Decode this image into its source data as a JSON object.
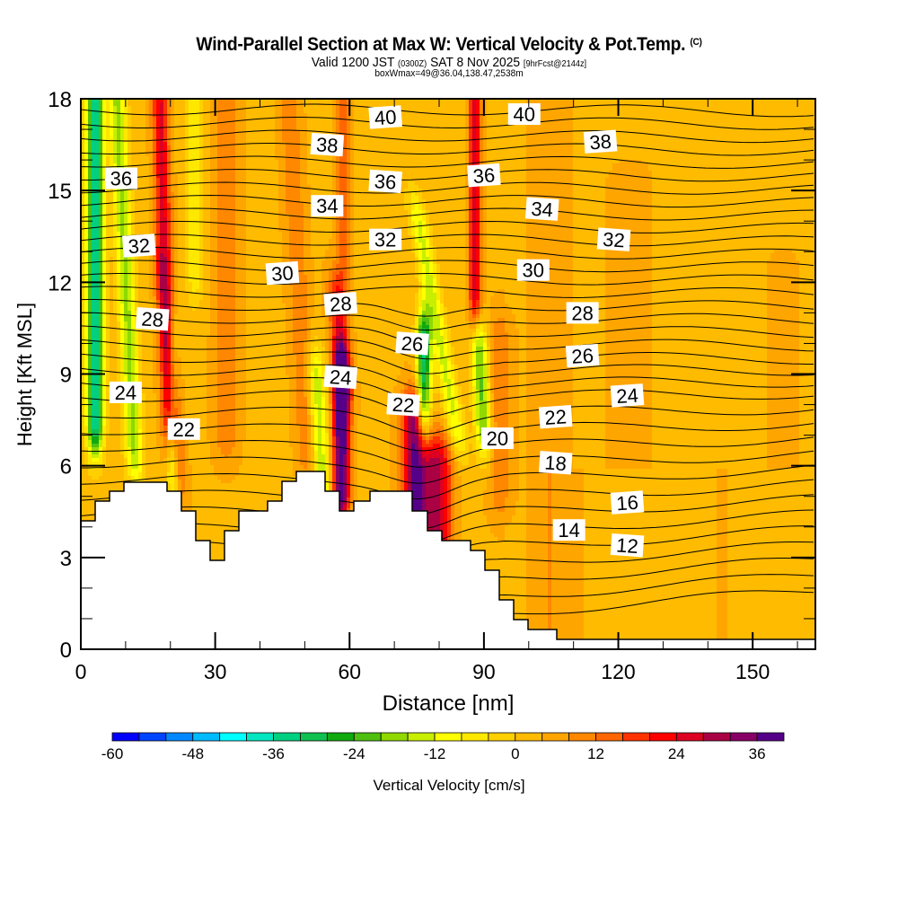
{
  "header": {
    "title": "Wind-Parallel Section at Max W: Vertical Velocity & Pot.Temp.",
    "copyright": "(C)",
    "valid_prefix": "Valid 1200 JST",
    "valid_utc": "(0300Z)",
    "valid_date": "SAT 8 Nov 2025",
    "forecast": "[9hrFcst@2144z]",
    "boxwmax": "boxWmax=49@36.04,138.47,2538m"
  },
  "chart_data": {
    "type": "heatmap",
    "title": "Wind-Parallel Section at Max W: Vertical Velocity & Pot.Temp.",
    "xlabel": "Distance [nm]",
    "ylabel": "Height [Kft MSL]",
    "xlim": [
      0,
      164
    ],
    "ylim": [
      0,
      18
    ],
    "x_ticks": [
      "0",
      "30",
      "60",
      "90",
      "120",
      "150"
    ],
    "x_tick_values": [
      0,
      30,
      60,
      90,
      120,
      150
    ],
    "y_ticks": [
      "0",
      "3",
      "6",
      "9",
      "12",
      "15",
      "18"
    ],
    "y_tick_values": [
      0,
      3,
      6,
      9,
      12,
      15,
      18
    ],
    "colorbar": {
      "label": "Vertical Velocity [cm/s]",
      "levels": [
        -60,
        -56,
        -52,
        -48,
        -44,
        -40,
        -36,
        -32,
        -28,
        -24,
        -20,
        -16,
        -12,
        -8,
        -4,
        0,
        4,
        8,
        12,
        16,
        20,
        24,
        28,
        32,
        36,
        40
      ],
      "tick_labels": [
        "-60",
        "-48",
        "-36",
        "-24",
        "-12",
        "0",
        "12",
        "24",
        "36"
      ],
      "tick_values": [
        -60,
        -48,
        -36,
        -24,
        -12,
        0,
        12,
        24,
        36
      ],
      "colors": [
        "#0000ff",
        "#0044ff",
        "#0088ff",
        "#00bbff",
        "#00ffff",
        "#00e6c0",
        "#00d080",
        "#10c050",
        "#10aa10",
        "#50c010",
        "#90d800",
        "#c8ee00",
        "#ffff00",
        "#ffe800",
        "#ffd000",
        "#ffbb00",
        "#ffa500",
        "#ff8800",
        "#ff6600",
        "#ff3300",
        "#ff0000",
        "#dd0022",
        "#aa0044",
        "#880066",
        "#550088"
      ]
    },
    "contour_field": "Potential Temperature",
    "contour_labels": [
      {
        "value": "40",
        "x": 68,
        "y": 17.4
      },
      {
        "value": "40",
        "x": 99,
        "y": 17.5
      },
      {
        "value": "38",
        "x": 55,
        "y": 16.5
      },
      {
        "value": "38",
        "x": 116,
        "y": 16.6
      },
      {
        "value": "36",
        "x": 9,
        "y": 15.4
      },
      {
        "value": "36",
        "x": 68,
        "y": 15.3
      },
      {
        "value": "36",
        "x": 90,
        "y": 15.5
      },
      {
        "value": "34",
        "x": 55,
        "y": 14.5
      },
      {
        "value": "34",
        "x": 103,
        "y": 14.4
      },
      {
        "value": "32",
        "x": 13,
        "y": 13.2
      },
      {
        "value": "32",
        "x": 68,
        "y": 13.4
      },
      {
        "value": "32",
        "x": 119,
        "y": 13.4
      },
      {
        "value": "30",
        "x": 45,
        "y": 12.3
      },
      {
        "value": "30",
        "x": 101,
        "y": 12.4
      },
      {
        "value": "28",
        "x": 16,
        "y": 10.8
      },
      {
        "value": "28",
        "x": 58,
        "y": 11.3
      },
      {
        "value": "28",
        "x": 112,
        "y": 11.0
      },
      {
        "value": "26",
        "x": 74,
        "y": 10.0
      },
      {
        "value": "26",
        "x": 112,
        "y": 9.6
      },
      {
        "value": "24",
        "x": 10,
        "y": 8.4
      },
      {
        "value": "24",
        "x": 58,
        "y": 8.9
      },
      {
        "value": "24",
        "x": 122,
        "y": 8.3
      },
      {
        "value": "22",
        "x": 23,
        "y": 7.2
      },
      {
        "value": "22",
        "x": 72,
        "y": 8.0
      },
      {
        "value": "22",
        "x": 106,
        "y": 7.6
      },
      {
        "value": "20",
        "x": 93,
        "y": 6.9
      },
      {
        "value": "18",
        "x": 106,
        "y": 6.1
      },
      {
        "value": "16",
        "x": 122,
        "y": 4.8
      },
      {
        "value": "14",
        "x": 109,
        "y": 3.9
      },
      {
        "value": "12",
        "x": 122,
        "y": 3.4
      }
    ]
  }
}
